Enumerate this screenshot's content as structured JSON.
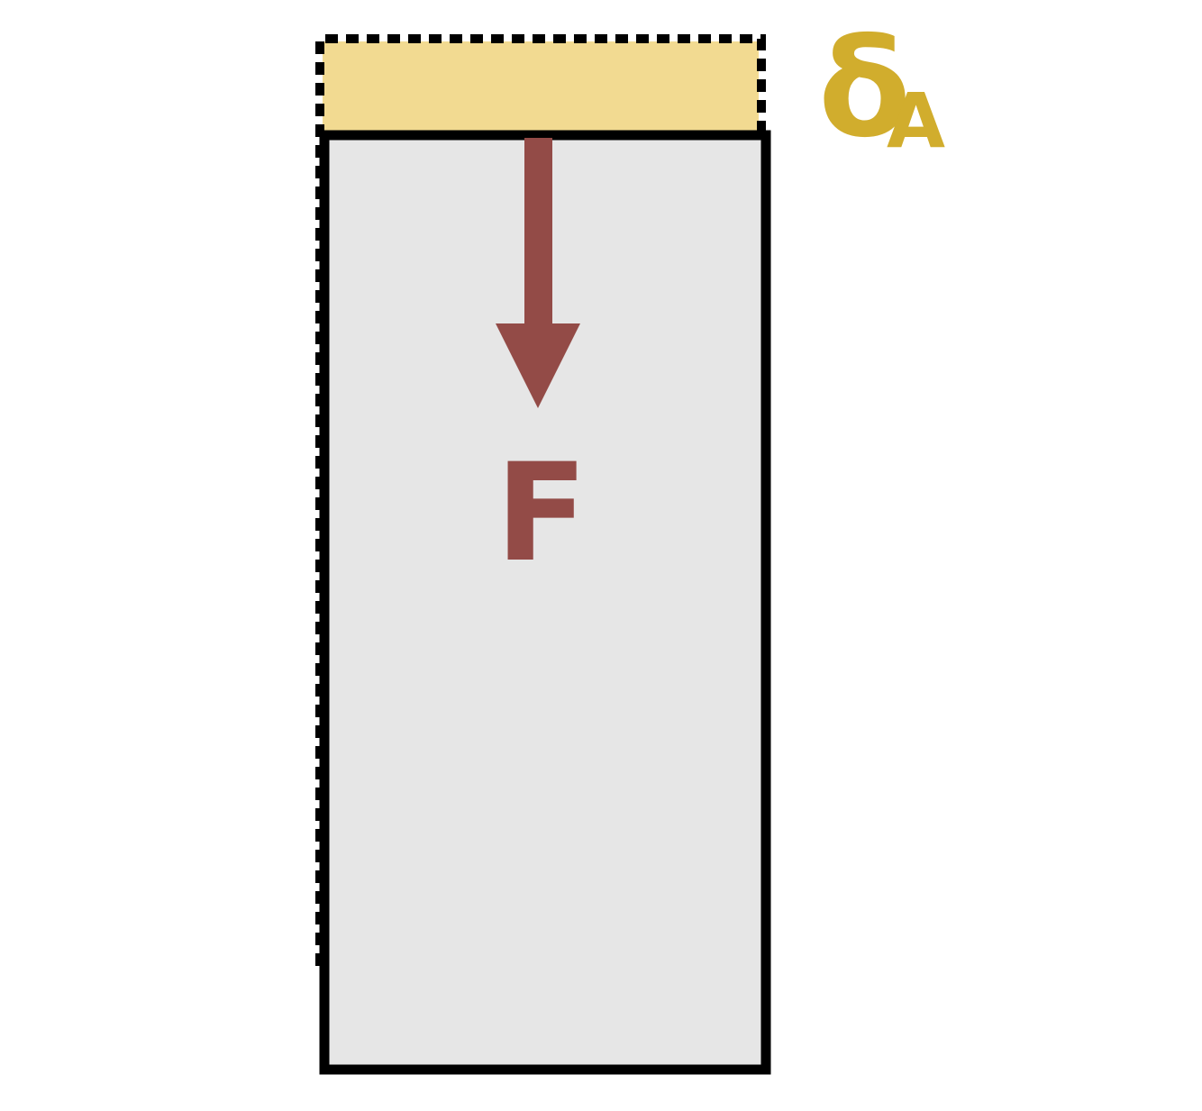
{
  "colors": {
    "background": "#ffffff",
    "bar_fill": "#e6e6e6",
    "bar_outline": "#000000",
    "displacement_fill": "#f2da91",
    "force": "#934b47",
    "delta_label": "#d1ad2d"
  },
  "labels": {
    "force": "F",
    "displacement_symbol": "δ",
    "displacement_subscript": "A"
  }
}
